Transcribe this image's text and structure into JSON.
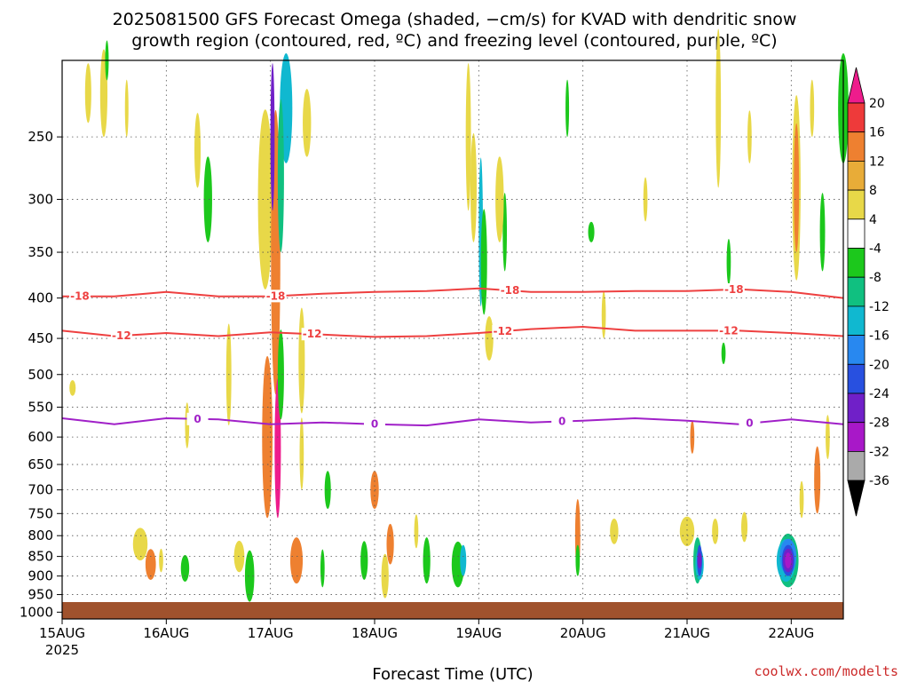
{
  "chart_data": {
    "type": "heatmap",
    "title_line1": "2025081500 GFS Forecast Omega (shaded, −cm/s) for KVAD with dendritic snow",
    "title_line2": "growth region (contoured, red, ºC) and freezing level (contoured, purple, ºC)",
    "xlabel": "Forecast Time (UTC)",
    "year_label": "2025",
    "credit": "coolwx.com/modelts",
    "x_ticks": [
      "15AUG",
      "16AUG",
      "17AUG",
      "18AUG",
      "19AUG",
      "20AUG",
      "21AUG",
      "22AUG"
    ],
    "xlim_days": [
      0,
      7.5
    ],
    "y_scale": "log-pressure",
    "ylim_hpa": [
      1020,
      200
    ],
    "y_ticks": [
      250,
      300,
      350,
      400,
      450,
      500,
      550,
      600,
      650,
      700,
      750,
      800,
      850,
      900,
      950,
      1000
    ],
    "grid": true,
    "colorbar": {
      "tick_labels": [
        "20",
        "16",
        "12",
        "8",
        "4",
        "-4",
        "-8",
        "-12",
        "-16",
        "-20",
        "-24",
        "-28",
        "-32",
        "-36"
      ],
      "colors": [
        "#ee1c8c",
        "#ee3a3a",
        "#ee8030",
        "#e8ac38",
        "#e8d848",
        "#ffffff",
        "#1cc81c",
        "#10c080",
        "#10b8d0",
        "#2888f0",
        "#2850e0",
        "#7020c8",
        "#a818c8",
        "#aaaaaa",
        "#000000"
      ]
    },
    "contours": [
      {
        "label": "-18",
        "color": "#ee4040",
        "x": [
          0,
          0.5,
          1.0,
          1.5,
          2.0,
          2.5,
          3.0,
          3.5,
          4.0,
          4.5,
          5.0,
          5.5,
          6.0,
          6.5,
          7.0,
          7.5
        ],
        "p": [
          398,
          398,
          393,
          398,
          398,
          395,
          393,
          392,
          389,
          393,
          393,
          392,
          392,
          390,
          393,
          400
        ],
        "labels_at": [
          0.17,
          2.05,
          4.3,
          6.45
        ]
      },
      {
        "label": "-12",
        "color": "#ee4040",
        "x": [
          0,
          0.5,
          1.0,
          1.5,
          2.0,
          2.5,
          3.0,
          3.5,
          4.0,
          4.5,
          5.0,
          5.5,
          6.0,
          6.5,
          7.0,
          7.5
        ],
        "p": [
          440,
          447,
          443,
          447,
          442,
          445,
          448,
          447,
          443,
          438,
          435,
          440,
          440,
          440,
          443,
          447
        ],
        "labels_at": [
          0.57,
          2.4,
          4.23,
          6.4
        ]
      },
      {
        "label": "0",
        "color": "#a020c8",
        "x": [
          0,
          0.5,
          1.0,
          1.5,
          2.0,
          2.5,
          3.0,
          3.5,
          4.0,
          4.5,
          5.0,
          5.5,
          6.0,
          6.5,
          7.0,
          7.5
        ],
        "p": [
          568,
          578,
          568,
          570,
          578,
          575,
          578,
          580,
          570,
          575,
          572,
          568,
          572,
          578,
          570,
          578
        ],
        "labels_at": [
          1.3,
          3.0,
          4.8,
          6.6
        ]
      }
    ]
  }
}
